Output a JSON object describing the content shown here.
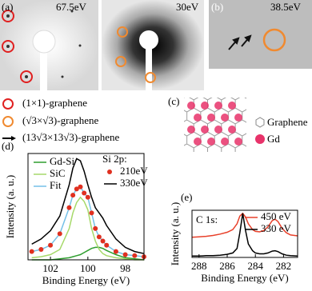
{
  "figure": {
    "panel_labels": [
      "(a)",
      "(b)",
      "(c)",
      "(d)",
      "(e)"
    ],
    "energies": [
      "67.5eV",
      "30eV",
      "38.5eV"
    ],
    "legend": [
      "(1×1)-graphene",
      "(√3×√3)-graphene",
      "(13√3×13√3)-graphene"
    ],
    "diagram_legend": [
      "Graphene",
      "Gd"
    ]
  },
  "chart_data": [
    {
      "type": "line",
      "annotation": "Si 2p:",
      "x_label": "Binding Energy (eV)",
      "y_label": "Intensity (a. u.)",
      "x": [
        103,
        102.5,
        102,
        101.5,
        101,
        100.8,
        100.6,
        100.4,
        100.2,
        100,
        99.8,
        99.6,
        99.4,
        99.2,
        99,
        98.5,
        98,
        97.5,
        97
      ],
      "xlim": [
        103.2,
        97
      ],
      "xticks": [
        102,
        100,
        98
      ],
      "ylim": [
        0,
        1.02
      ],
      "series": [
        {
          "name": "Gd-Si",
          "color": "#2e9e2e",
          "values": [
            0,
            0,
            0,
            0.01,
            0.02,
            0.03,
            0.04,
            0.05,
            0.07,
            0.09,
            0.11,
            0.12,
            0.12,
            0.11,
            0.09,
            0.05,
            0.02,
            0.01,
            0
          ]
        },
        {
          "name": "SiC",
          "color": "#a6d96a",
          "values": [
            0.02,
            0.03,
            0.05,
            0.1,
            0.3,
            0.45,
            0.55,
            0.6,
            0.56,
            0.48,
            0.3,
            0.18,
            0.1,
            0.06,
            0.04,
            0.02,
            0.01,
            0,
            0
          ]
        },
        {
          "name": "Fit",
          "color": "#74c0e8",
          "values": [
            0.08,
            0.1,
            0.14,
            0.25,
            0.5,
            0.62,
            0.68,
            0.7,
            0.64,
            0.6,
            0.45,
            0.3,
            0.22,
            0.18,
            0.14,
            0.08,
            0.05,
            0.04,
            0.03
          ]
        },
        {
          "name": "210eV",
          "color": "#e03020",
          "marker": "dots",
          "values": [
            0.08,
            0.1,
            0.14,
            0.25,
            0.5,
            0.62,
            0.68,
            0.7,
            0.64,
            0.6,
            0.45,
            0.3,
            0.22,
            0.18,
            0.14,
            0.08,
            0.05,
            0.04,
            0.03
          ]
        },
        {
          "name": "330eV",
          "color": "#000000",
          "values": [
            0.15,
            0.2,
            0.28,
            0.42,
            0.72,
            0.88,
            0.97,
            0.95,
            0.85,
            0.72,
            0.6,
            0.5,
            0.45,
            0.4,
            0.33,
            0.2,
            0.12,
            0.08,
            0.06
          ]
        }
      ]
    },
    {
      "type": "line",
      "annotation": "C 1s:",
      "x_label": "Binding Energy (eV)",
      "y_label": "Intensity (a. u.)",
      "x": [
        288.5,
        288,
        287.5,
        287,
        286.5,
        286,
        285.6,
        285.3,
        285.1,
        284.9,
        284.7,
        284.5,
        284.2,
        284,
        283.7,
        283.4,
        283.1,
        282.8,
        282.6,
        282.4,
        282.1,
        281.8,
        281.5,
        281
      ],
      "xlim": [
        288.5,
        281
      ],
      "xticks": [
        288,
        286,
        284,
        282
      ],
      "ylim": [
        0,
        1.05
      ],
      "series": [
        {
          "name": "450 eV",
          "color": "#e8402a",
          "values": [
            0.45,
            0.46,
            0.47,
            0.49,
            0.52,
            0.56,
            0.62,
            0.75,
            0.92,
            0.98,
            0.9,
            0.75,
            0.62,
            0.58,
            0.57,
            0.6,
            0.68,
            0.82,
            0.85,
            0.8,
            0.65,
            0.55,
            0.5,
            0.48
          ]
        },
        {
          "name": "330 eV",
          "color": "#000000",
          "values": [
            0.03,
            0.03,
            0.04,
            0.04,
            0.05,
            0.07,
            0.1,
            0.2,
            0.55,
            0.98,
            0.6,
            0.3,
            0.15,
            0.1,
            0.08,
            0.08,
            0.1,
            0.14,
            0.15,
            0.13,
            0.08,
            0.05,
            0.04,
            0.03
          ]
        }
      ]
    }
  ]
}
